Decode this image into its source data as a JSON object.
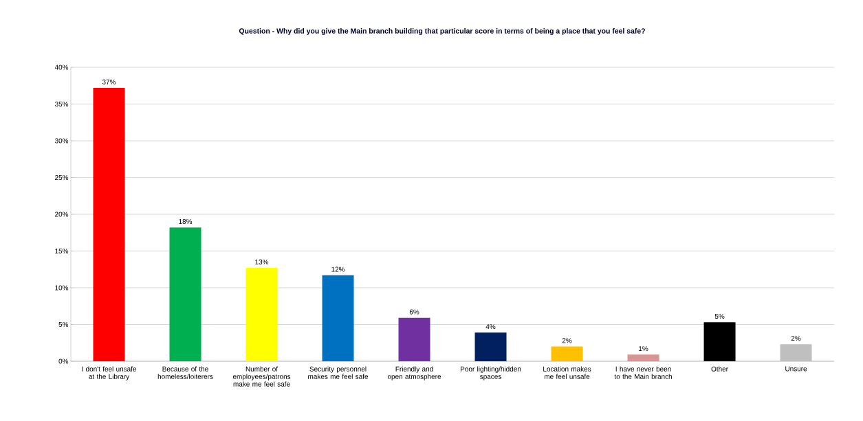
{
  "chart_data": {
    "type": "bar",
    "title": "Question - Why did you give the Main branch building that particular score in terms of being a place that you feel safe?",
    "categories": [
      "I don't feel unsafe at the Library",
      "Because of the homeless/loiterers",
      "Number of employees/patrons make me feel safe",
      "Security personnel makes me feel safe",
      "Friendly and open atmosphere",
      "Poor lighting/hidden spaces",
      "Location makes me feel unsafe",
      "I have never been to the Main branch",
      "Other",
      "Unsure"
    ],
    "values": [
      37.2,
      18.2,
      12.7,
      11.7,
      5.9,
      3.9,
      2.0,
      0.9,
      5.3,
      2.3
    ],
    "value_labels": [
      "37%",
      "18%",
      "13%",
      "12%",
      "6%",
      "4%",
      "2%",
      "1%",
      "5%",
      "2%"
    ],
    "colors": [
      "#ff0000",
      "#00b050",
      "#ffff00",
      "#0070c0",
      "#7030a0",
      "#002060",
      "#ffc000",
      "#d99594",
      "#000000",
      "#bfbfbf"
    ],
    "ylim": [
      0,
      40
    ],
    "yticks": [
      {
        "value": 0,
        "label": "0%"
      },
      {
        "value": 5,
        "label": "5%"
      },
      {
        "value": 10,
        "label": "10%"
      },
      {
        "value": 15,
        "label": "15%"
      },
      {
        "value": 20,
        "label": "20%"
      },
      {
        "value": 25,
        "label": "25%"
      },
      {
        "value": 30,
        "label": "30%"
      },
      {
        "value": 35,
        "label": "35%"
      },
      {
        "value": 40,
        "label": "40%"
      }
    ],
    "grid": "y"
  }
}
